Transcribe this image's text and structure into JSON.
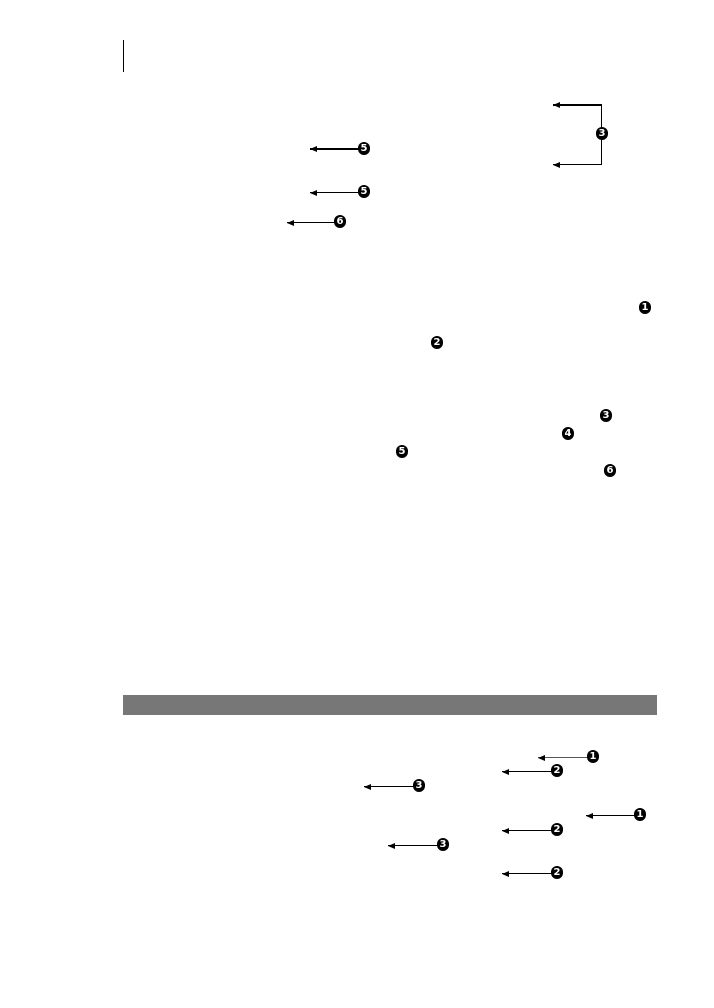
{
  "colors": {
    "callout": "#000000",
    "section_bar": "#777777"
  },
  "top_callouts": {
    "bracket": "3",
    "arrow_a": "5",
    "arrow_b": "5",
    "arrow_c": "6"
  },
  "markers": [
    "1",
    "2",
    "3",
    "4",
    "5",
    "6"
  ],
  "bottom_callouts": [
    "1",
    "2",
    "3",
    "1",
    "2",
    "3",
    "2"
  ]
}
